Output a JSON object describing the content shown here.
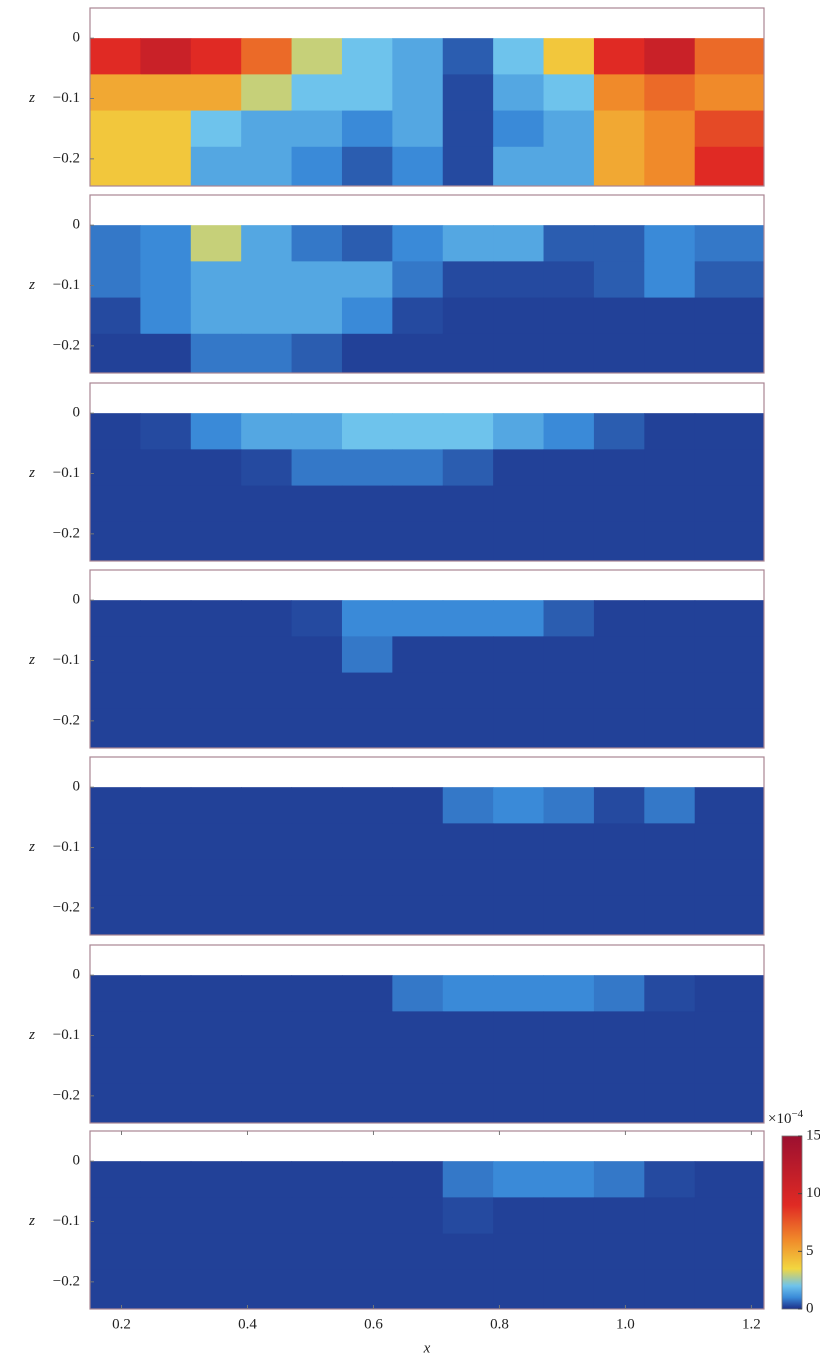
{
  "chart_data": [
    {
      "type": "heatmap",
      "ylabel": "z",
      "xlim": [
        0.15,
        1.22
      ],
      "ylim": [
        -0.245,
        0.05
      ],
      "yticks": [
        0,
        {
          "value": -0.1,
          "label": "−0.1"
        },
        {
          "value": -0.2,
          "label": "−0.2"
        }
      ],
      "x_edges": [
        0.15,
        0.23,
        0.31,
        0.39,
        0.47,
        0.55,
        0.63,
        0.71,
        0.79,
        0.87,
        0.95,
        1.03,
        1.11,
        1.22
      ],
      "z_edges": [
        0,
        -0.06,
        -0.12,
        -0.18,
        -0.245
      ],
      "values": [
        [
          9,
          11,
          9,
          7,
          3,
          2,
          1.5,
          0.5,
          2,
          4,
          9,
          11,
          7
        ],
        [
          5,
          5,
          5,
          3,
          2,
          2,
          1.5,
          0.3,
          1.5,
          2,
          6,
          7,
          6
        ],
        [
          4,
          4,
          2,
          1.5,
          1.5,
          1,
          1.5,
          0.3,
          1,
          1.5,
          5,
          6,
          8
        ],
        [
          4,
          4,
          1.5,
          1.5,
          1,
          0.5,
          1,
          0.3,
          1.5,
          1.5,
          5,
          6,
          9
        ]
      ]
    },
    {
      "type": "heatmap",
      "ylabel": "z",
      "xlim": [
        0.15,
        1.22
      ],
      "ylim": [
        -0.245,
        0.05
      ],
      "yticks": [
        0,
        {
          "value": -0.1,
          "label": "−0.1"
        },
        {
          "value": -0.2,
          "label": "−0.2"
        }
      ],
      "x_edges": [
        0.15,
        0.23,
        0.31,
        0.39,
        0.47,
        0.55,
        0.63,
        0.71,
        0.79,
        0.87,
        0.95,
        1.03,
        1.11,
        1.22
      ],
      "z_edges": [
        0,
        -0.06,
        -0.12,
        -0.18,
        -0.245
      ],
      "values": [
        [
          0.8,
          1,
          3,
          1.5,
          0.8,
          0.5,
          1,
          1.5,
          1.5,
          0.5,
          0.5,
          1,
          0.8
        ],
        [
          0.8,
          1,
          1.5,
          1.5,
          1.5,
          1.5,
          0.8,
          0.3,
          0.3,
          0.3,
          0.5,
          1,
          0.5
        ],
        [
          0.3,
          1,
          1.5,
          1.5,
          1.5,
          1,
          0.3,
          0.2,
          0.2,
          0.2,
          0.2,
          0.2,
          0.2
        ],
        [
          0.2,
          0.2,
          0.8,
          0.8,
          0.5,
          0.2,
          0.2,
          0.2,
          0.2,
          0.2,
          0.2,
          0.2,
          0.2
        ]
      ]
    },
    {
      "type": "heatmap",
      "ylabel": "z",
      "xlim": [
        0.15,
        1.22
      ],
      "ylim": [
        -0.245,
        0.05
      ],
      "yticks": [
        0,
        {
          "value": -0.1,
          "label": "−0.1"
        },
        {
          "value": -0.2,
          "label": "−0.2"
        }
      ],
      "x_edges": [
        0.15,
        0.23,
        0.31,
        0.39,
        0.47,
        0.55,
        0.63,
        0.71,
        0.79,
        0.87,
        0.95,
        1.03,
        1.11,
        1.22
      ],
      "z_edges": [
        0,
        -0.06,
        -0.12,
        -0.18,
        -0.245
      ],
      "values": [
        [
          0.2,
          0.3,
          1,
          1.5,
          1.5,
          2,
          2,
          2,
          1.5,
          1,
          0.5,
          0.2,
          0.2
        ],
        [
          0.2,
          0.2,
          0.2,
          0.3,
          0.8,
          0.8,
          0.8,
          0.5,
          0.2,
          0.2,
          0.2,
          0.2,
          0.2
        ],
        [
          0.2,
          0.2,
          0.2,
          0.2,
          0.2,
          0.2,
          0.2,
          0.2,
          0.2,
          0.2,
          0.2,
          0.2,
          0.2
        ],
        [
          0.2,
          0.2,
          0.2,
          0.2,
          0.2,
          0.2,
          0.2,
          0.2,
          0.2,
          0.2,
          0.2,
          0.2,
          0.2
        ]
      ]
    },
    {
      "type": "heatmap",
      "ylabel": "z",
      "xlim": [
        0.15,
        1.22
      ],
      "ylim": [
        -0.245,
        0.05
      ],
      "yticks": [
        0,
        {
          "value": -0.1,
          "label": "−0.1"
        },
        {
          "value": -0.2,
          "label": "−0.2"
        }
      ],
      "x_edges": [
        0.15,
        0.23,
        0.31,
        0.39,
        0.47,
        0.55,
        0.63,
        0.71,
        0.79,
        0.87,
        0.95,
        1.03,
        1.11,
        1.22
      ],
      "z_edges": [
        0,
        -0.06,
        -0.12,
        -0.18,
        -0.245
      ],
      "values": [
        [
          0.2,
          0.2,
          0.2,
          0.2,
          0.3,
          1,
          1,
          1,
          1,
          0.5,
          0.2,
          0.2,
          0.2
        ],
        [
          0.2,
          0.2,
          0.2,
          0.2,
          0.2,
          0.8,
          0.2,
          0.2,
          0.2,
          0.2,
          0.2,
          0.2,
          0.2
        ],
        [
          0.2,
          0.2,
          0.2,
          0.2,
          0.2,
          0.2,
          0.2,
          0.2,
          0.2,
          0.2,
          0.2,
          0.2,
          0.2
        ],
        [
          0.2,
          0.2,
          0.2,
          0.2,
          0.2,
          0.2,
          0.2,
          0.2,
          0.2,
          0.2,
          0.2,
          0.2,
          0.2
        ]
      ]
    },
    {
      "type": "heatmap",
      "ylabel": "z",
      "xlim": [
        0.15,
        1.22
      ],
      "ylim": [
        -0.245,
        0.05
      ],
      "yticks": [
        0,
        {
          "value": -0.1,
          "label": "−0.1"
        },
        {
          "value": -0.2,
          "label": "−0.2"
        }
      ],
      "x_edges": [
        0.15,
        0.23,
        0.31,
        0.39,
        0.47,
        0.55,
        0.63,
        0.71,
        0.79,
        0.87,
        0.95,
        1.03,
        1.11,
        1.22
      ],
      "z_edges": [
        0,
        -0.06,
        -0.12,
        -0.18,
        -0.245
      ],
      "values": [
        [
          0.2,
          0.2,
          0.2,
          0.2,
          0.2,
          0.2,
          0.2,
          0.8,
          1,
          0.8,
          0.3,
          0.8,
          0.2
        ],
        [
          0.2,
          0.2,
          0.2,
          0.2,
          0.2,
          0.2,
          0.2,
          0.2,
          0.2,
          0.2,
          0.2,
          0.2,
          0.2
        ],
        [
          0.2,
          0.2,
          0.2,
          0.2,
          0.2,
          0.2,
          0.2,
          0.2,
          0.2,
          0.2,
          0.2,
          0.2,
          0.2
        ],
        [
          0.2,
          0.2,
          0.2,
          0.2,
          0.2,
          0.2,
          0.2,
          0.2,
          0.2,
          0.2,
          0.2,
          0.2,
          0.2
        ]
      ]
    },
    {
      "type": "heatmap",
      "ylabel": "z",
      "xlim": [
        0.15,
        1.22
      ],
      "ylim": [
        -0.245,
        0.05
      ],
      "yticks": [
        0,
        {
          "value": -0.1,
          "label": "−0.1"
        },
        {
          "value": -0.2,
          "label": "−0.2"
        }
      ],
      "x_edges": [
        0.15,
        0.23,
        0.31,
        0.39,
        0.47,
        0.55,
        0.63,
        0.71,
        0.79,
        0.87,
        0.95,
        1.03,
        1.11,
        1.22
      ],
      "z_edges": [
        0,
        -0.06,
        -0.12,
        -0.18,
        -0.245
      ],
      "values": [
        [
          0.2,
          0.2,
          0.2,
          0.2,
          0.2,
          0.2,
          0.8,
          1,
          1,
          1,
          0.8,
          0.3,
          0.2
        ],
        [
          0.2,
          0.2,
          0.2,
          0.2,
          0.2,
          0.2,
          0.2,
          0.2,
          0.2,
          0.2,
          0.2,
          0.2,
          0.2
        ],
        [
          0.2,
          0.2,
          0.2,
          0.2,
          0.2,
          0.2,
          0.2,
          0.2,
          0.2,
          0.2,
          0.2,
          0.2,
          0.2
        ],
        [
          0.2,
          0.2,
          0.2,
          0.2,
          0.2,
          0.2,
          0.2,
          0.2,
          0.2,
          0.2,
          0.2,
          0.2,
          0.2
        ]
      ]
    },
    {
      "type": "heatmap",
      "ylabel": "z",
      "xlabel": "x",
      "xlim": [
        0.15,
        1.22
      ],
      "ylim": [
        -0.245,
        0.05
      ],
      "yticks": [
        0,
        {
          "value": -0.1,
          "label": "−0.1"
        },
        {
          "value": -0.2,
          "label": "−0.2"
        }
      ],
      "xticks": [
        0.2,
        0.4,
        0.6,
        0.8,
        {
          "value": 1,
          "label": "1.0"
        },
        1.2
      ],
      "x_edges": [
        0.15,
        0.23,
        0.31,
        0.39,
        0.47,
        0.55,
        0.63,
        0.71,
        0.79,
        0.87,
        0.95,
        1.03,
        1.11,
        1.22
      ],
      "z_edges": [
        0,
        -0.06,
        -0.12,
        -0.18,
        -0.245
      ],
      "values": [
        [
          0.2,
          0.2,
          0.2,
          0.2,
          0.2,
          0.2,
          0.2,
          0.8,
          1,
          1,
          0.8,
          0.3,
          0.2
        ],
        [
          0.2,
          0.2,
          0.2,
          0.2,
          0.2,
          0.2,
          0.2,
          0.3,
          0.2,
          0.2,
          0.2,
          0.2,
          0.2
        ],
        [
          0.2,
          0.2,
          0.2,
          0.2,
          0.2,
          0.2,
          0.2,
          0.2,
          0.2,
          0.2,
          0.2,
          0.2,
          0.2
        ],
        [
          0.2,
          0.2,
          0.2,
          0.2,
          0.2,
          0.2,
          0.2,
          0.2,
          0.2,
          0.2,
          0.2,
          0.2,
          0.2
        ]
      ],
      "colorbar": {
        "label": "×10",
        "exponent": "−4",
        "clim": [
          0,
          15
        ],
        "ticks": [
          0,
          5,
          10,
          15
        ]
      },
      "colormap": [
        [
          0,
          "#1c2f88"
        ],
        [
          1,
          "#3a8ad8"
        ],
        [
          2,
          "#6ec3ec"
        ],
        [
          3.5,
          "#f2d640"
        ],
        [
          6,
          "#f08a2a"
        ],
        [
          9,
          "#e02a24"
        ],
        [
          15,
          "#9c1030"
        ]
      ]
    }
  ]
}
